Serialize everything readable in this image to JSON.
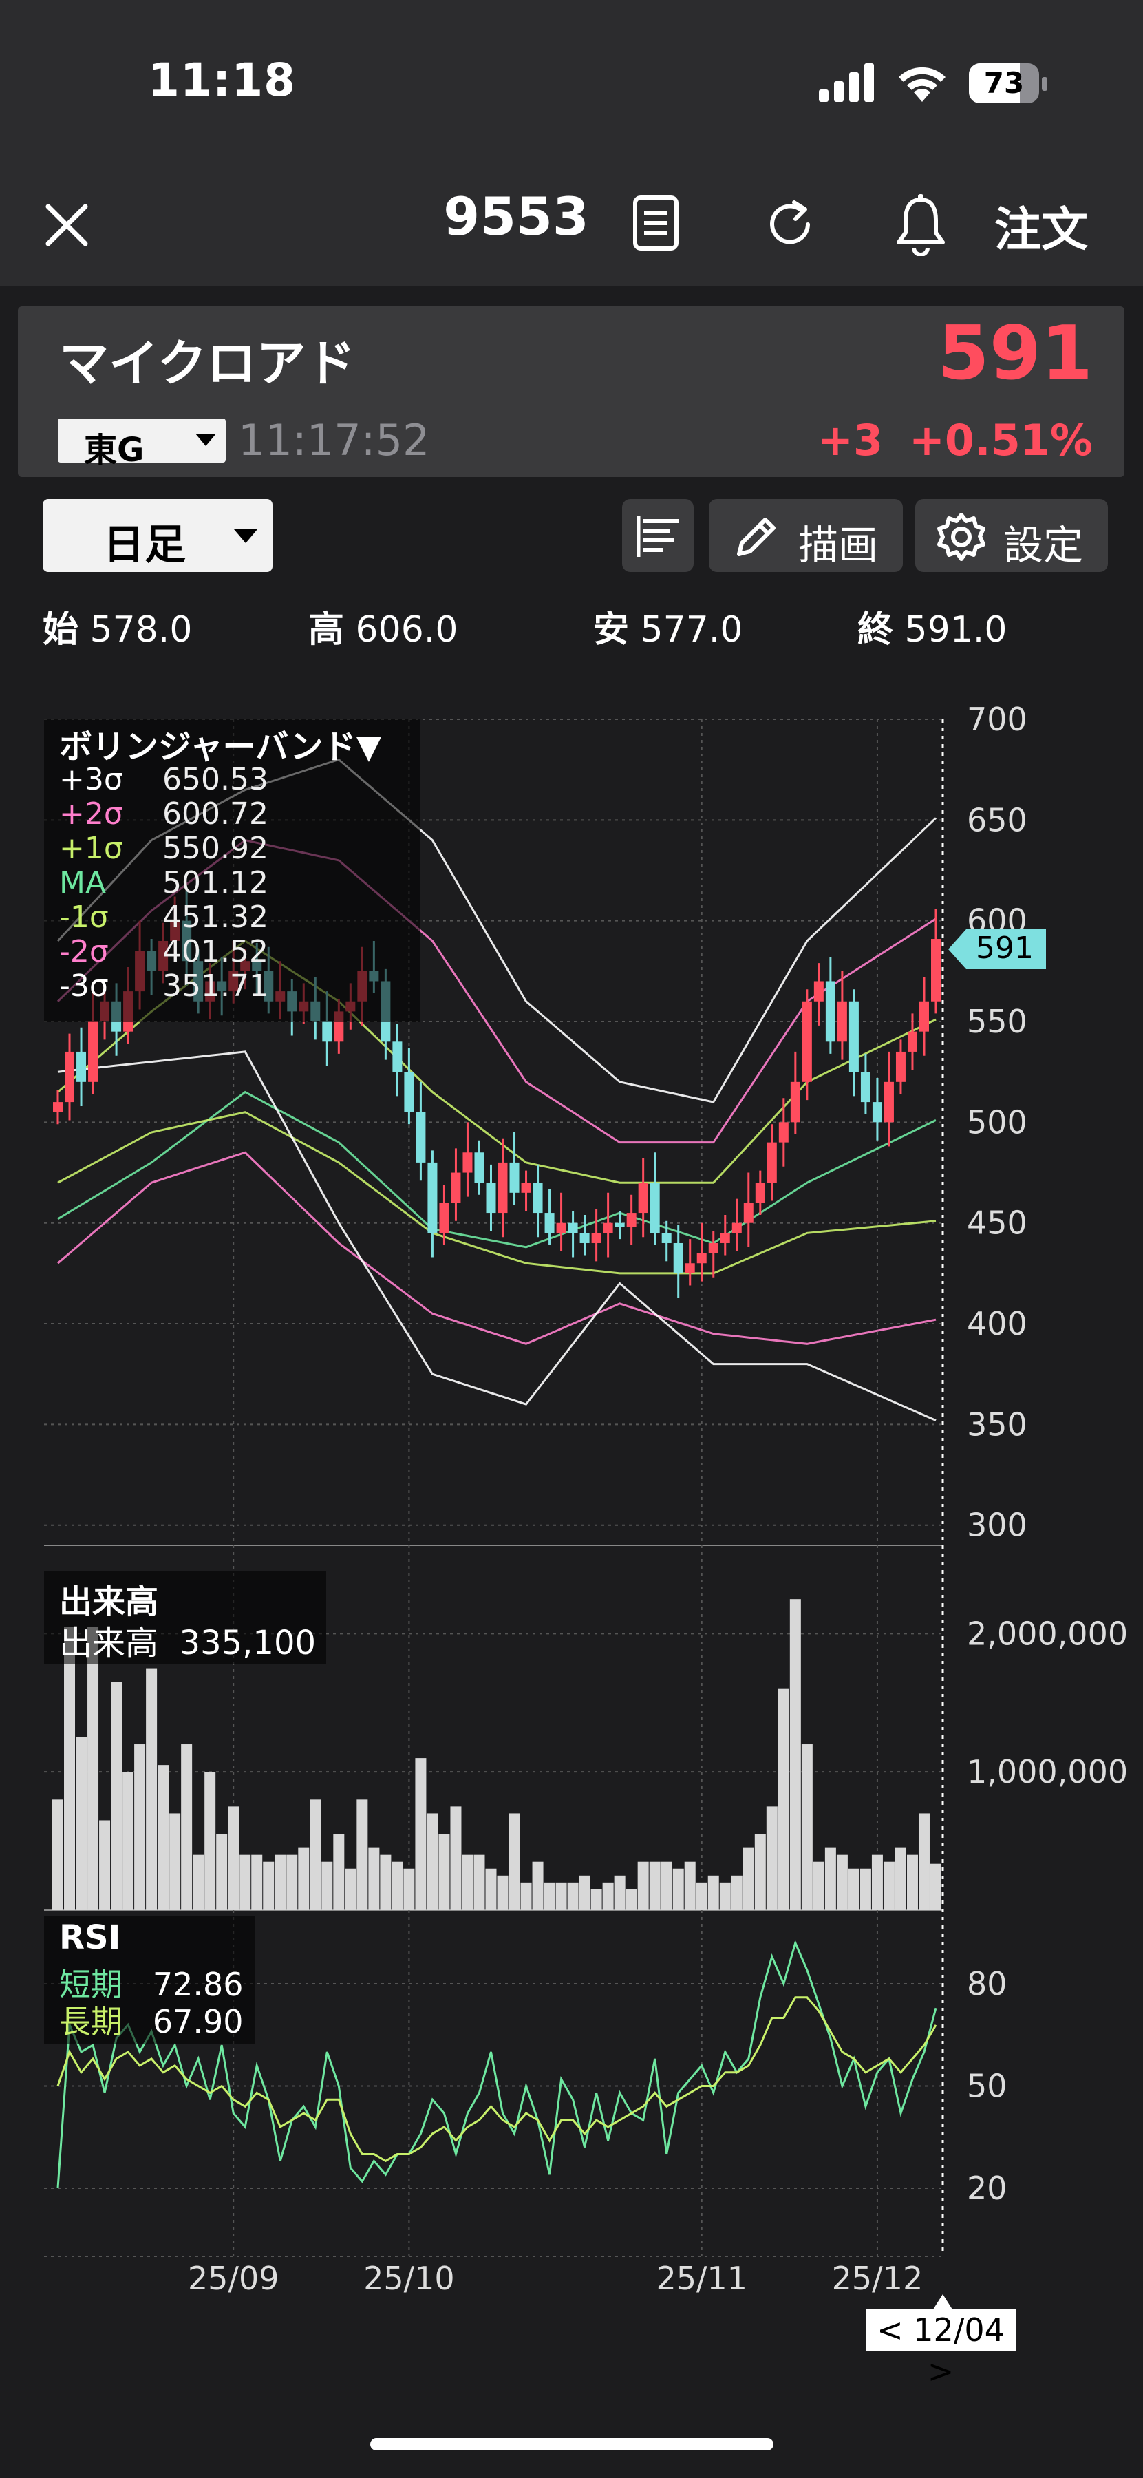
{
  "status_bar": {
    "time": "11:18",
    "battery": "73",
    "icons": [
      "cellular-signal-icon",
      "wifi-icon",
      "battery-icon"
    ]
  },
  "nav": {
    "title": "9553",
    "order_label": "注文",
    "icons": [
      "close-icon",
      "document-icon",
      "refresh-icon",
      "bell-icon"
    ]
  },
  "quote": {
    "name": "マイクロアド",
    "market": "東G",
    "timestamp": "11:17:52",
    "price": "591",
    "change": "+3",
    "change_pct": "+0.51%"
  },
  "toolbar": {
    "period": "日足",
    "draw_label": "描画",
    "settings_label": "設定",
    "icons": [
      "bar-list-icon",
      "pencil-icon",
      "gear-icon"
    ]
  },
  "ohlc": [
    {
      "label": "始",
      "value": "578.0"
    },
    {
      "label": "高",
      "value": "606.0"
    },
    {
      "label": "安",
      "value": "577.0"
    },
    {
      "label": "終",
      "value": "591.0"
    }
  ],
  "bollinger": {
    "title": "ボリンジャーバンド▼",
    "rows": [
      {
        "label": "+3σ",
        "value": "650.53",
        "color": "#ffffff"
      },
      {
        "label": "+2σ",
        "value": "600.72",
        "color": "#ff7fcc"
      },
      {
        "label": "+1σ",
        "value": "550.92",
        "color": "#c8f06a"
      },
      {
        "label": "MA",
        "value": "501.12",
        "color": "#6ee7a0"
      },
      {
        "label": "-1σ",
        "value": "451.32",
        "color": "#c8f06a"
      },
      {
        "label": "-2σ",
        "value": "401.52",
        "color": "#ff7fcc"
      },
      {
        "label": "-3σ",
        "value": "351.71",
        "color": "#ffffff"
      }
    ],
    "current_price_tag": "591"
  },
  "volume": {
    "title": "出来高",
    "label": "出来高",
    "value": "335,100"
  },
  "rsi": {
    "title": "RSI",
    "rows": [
      {
        "label": "短期",
        "value": "72.86",
        "color": "#6ee7a0"
      },
      {
        "label": "長期",
        "value": "67.90",
        "color": "#c8f06a"
      }
    ]
  },
  "cursor_label": "< 12/04 >",
  "colors": {
    "up": "#ff4d5e",
    "down": "#7ee0e0",
    "accent_red": "#ff4d5e"
  },
  "chart_data": {
    "type": "candlestick",
    "x_tick_labels": [
      "25/09",
      "25/10",
      "25/11",
      "25/12"
    ],
    "price_axis": {
      "ticks": [
        700,
        650,
        600,
        550,
        500,
        450,
        400,
        350,
        300
      ],
      "ylim": [
        290,
        700
      ]
    },
    "volume_axis": {
      "ticks": [
        "2,000,000",
        "1,000,000"
      ],
      "tick_values": [
        2000000,
        1000000
      ],
      "ylim": [
        0,
        2450000
      ]
    },
    "rsi_axis": {
      "ticks": [
        80,
        50,
        20
      ],
      "ylim": [
        0,
        100
      ]
    },
    "closes": [
      510,
      535,
      520,
      550,
      560,
      545,
      565,
      585,
      575,
      590,
      600,
      580,
      560,
      570,
      565,
      575,
      580,
      575,
      560,
      565,
      555,
      560,
      550,
      540,
      555,
      560,
      575,
      570,
      540,
      525,
      505,
      480,
      445,
      460,
      475,
      485,
      470,
      455,
      480,
      465,
      470,
      455,
      445,
      450,
      445,
      440,
      445,
      450,
      448,
      455,
      470,
      445,
      440,
      425,
      430,
      435,
      440,
      445,
      450,
      460,
      470,
      490,
      500,
      520,
      560,
      570,
      540,
      560,
      525,
      510,
      500,
      520,
      535,
      545,
      560,
      591
    ],
    "volume": [
      800000,
      2050000,
      1250000,
      2050000,
      650000,
      1650000,
      1000000,
      1200000,
      1750000,
      1050000,
      700000,
      1200000,
      400000,
      1000000,
      550000,
      750000,
      400000,
      400000,
      350000,
      400000,
      400000,
      450000,
      800000,
      350000,
      550000,
      300000,
      800000,
      450000,
      400000,
      350000,
      300000,
      1100000,
      700000,
      550000,
      750000,
      400000,
      400000,
      300000,
      250000,
      700000,
      200000,
      350000,
      200000,
      200000,
      200000,
      250000,
      150000,
      200000,
      250000,
      150000,
      350000,
      350000,
      350000,
      300000,
      350000,
      200000,
      250000,
      200000,
      250000,
      450000,
      550000,
      750000,
      1600000,
      2250000,
      1200000,
      350000,
      450000,
      400000,
      300000,
      300000,
      400000,
      350000,
      450000,
      400000,
      700000,
      335100
    ],
    "rsi_short": [
      20,
      68,
      60,
      62,
      48,
      64,
      68,
      60,
      66,
      56,
      62,
      50,
      58,
      46,
      62,
      42,
      38,
      56,
      46,
      28,
      40,
      44,
      38,
      60,
      50,
      26,
      22,
      28,
      24,
      30,
      30,
      36,
      46,
      42,
      30,
      42,
      48,
      60,
      42,
      36,
      50,
      40,
      24,
      52,
      46,
      32,
      48,
      34,
      48,
      42,
      40,
      58,
      30,
      48,
      52,
      56,
      48,
      60,
      54,
      58,
      76,
      88,
      80,
      92,
      84,
      74,
      64,
      50,
      58,
      44,
      54,
      58,
      42,
      52,
      60,
      72.86
    ],
    "rsi_long": [
      50,
      60,
      54,
      58,
      52,
      58,
      60,
      56,
      58,
      54,
      56,
      52,
      50,
      48,
      50,
      46,
      44,
      48,
      46,
      38,
      40,
      42,
      40,
      46,
      46,
      36,
      30,
      30,
      28,
      30,
      30,
      32,
      36,
      38,
      34,
      38,
      40,
      44,
      40,
      38,
      42,
      40,
      34,
      40,
      40,
      36,
      40,
      38,
      40,
      42,
      44,
      48,
      44,
      46,
      48,
      50,
      50,
      54,
      54,
      56,
      62,
      70,
      70,
      76,
      76,
      72,
      66,
      60,
      58,
      54,
      56,
      58,
      54,
      58,
      62,
      67.9
    ],
    "bands": {
      "x": [
        0,
        8,
        16,
        24,
        32,
        40,
        48,
        56,
        64,
        75
      ],
      "ma": [
        452,
        480,
        515,
        490,
        447,
        438,
        455,
        440,
        470,
        501
      ],
      "upper3": [
        590,
        640,
        665,
        680,
        640,
        560,
        520,
        510,
        590,
        651
      ],
      "upper2": [
        560,
        605,
        640,
        630,
        590,
        520,
        490,
        490,
        560,
        601
      ],
      "upper1": [
        515,
        555,
        590,
        560,
        515,
        480,
        470,
        470,
        520,
        551
      ],
      "lower1": [
        470,
        495,
        505,
        480,
        445,
        430,
        425,
        425,
        445,
        451
      ],
      "lower2": [
        430,
        470,
        485,
        440,
        405,
        390,
        410,
        395,
        390,
        402
      ],
      "lower3": [
        525,
        530,
        535,
        450,
        375,
        360,
        420,
        380,
        380,
        352
      ]
    }
  }
}
